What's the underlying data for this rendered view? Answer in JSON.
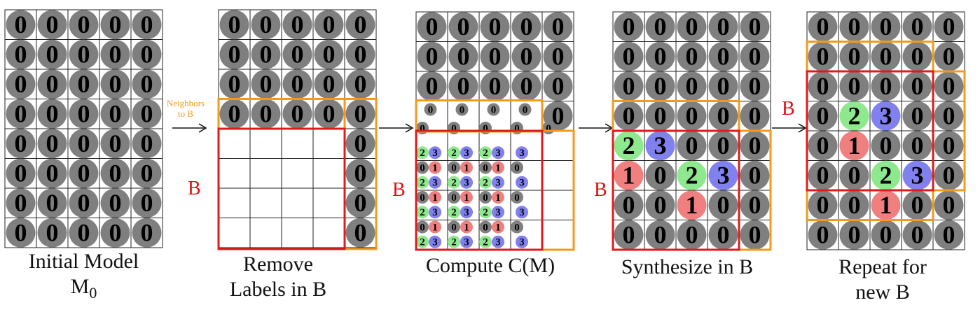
{
  "colors": {
    "cell_border": "#222222",
    "zero_fill": "#7f7f7f",
    "one_fill": "#f08080",
    "two_fill": "#8ee98e",
    "three_fill": "#8080ee",
    "b_region": "#e01a1a",
    "neighbors_region": "#f39a1e"
  },
  "icons": {
    "arrow": "right-arrow-icon"
  },
  "panels": [
    {
      "id": "initial",
      "caption_line1": "Initial Model",
      "caption_line2_main": "M",
      "caption_line2_sub": "0",
      "rows": [
        "00000",
        "00000",
        "00000",
        "00000",
        "00000",
        "00000",
        "00000",
        "00000"
      ]
    },
    {
      "id": "remove",
      "caption_line1": "Remove",
      "caption_line2": "Labels in B",
      "b_label": "B",
      "neighbors_note_line1": "Neighbors",
      "neighbors_note_line2": "to B",
      "rows": [
        "00000",
        "00000",
        "00000",
        "00000",
        "....0",
        "....0",
        "....0",
        "....0"
      ]
    },
    {
      "id": "compute",
      "caption": "Compute C(M)",
      "b_label": "B",
      "top_rows": [
        "00000",
        "00000",
        "00000"
      ],
      "neighbor_row_small": [
        "0",
        "0",
        "0",
        "0"
      ],
      "neighbor_row_last": "0",
      "compute_rows": [
        [
          "0",
          "0",
          "0",
          "0",
          "0"
        ],
        [
          "23",
          "23",
          "23",
          "3",
          ""
        ],
        [
          "01",
          "01",
          "01",
          "0",
          ""
        ],
        [
          "23",
          "23",
          "23",
          "3",
          ""
        ],
        [
          "01",
          "01",
          "01",
          "0",
          ""
        ],
        [
          "23",
          "23",
          "23",
          "3",
          ""
        ],
        [
          "01",
          "01",
          "01",
          "0",
          ""
        ],
        [
          "23",
          "23",
          "23",
          "3",
          ""
        ]
      ]
    },
    {
      "id": "synthesize",
      "caption": "Synthesize in B",
      "b_label": "B",
      "rows": [
        "00000",
        "00000",
        "00000",
        "00000",
        "23000",
        "10230",
        "00100",
        "00000"
      ]
    },
    {
      "id": "repeat",
      "caption_line1": "Repeat for",
      "caption_line2": "new B",
      "b_label": "B",
      "rows": [
        "00000",
        "00000",
        "00000",
        "02300",
        "01000",
        "00230",
        "00100",
        "00000"
      ]
    }
  ]
}
